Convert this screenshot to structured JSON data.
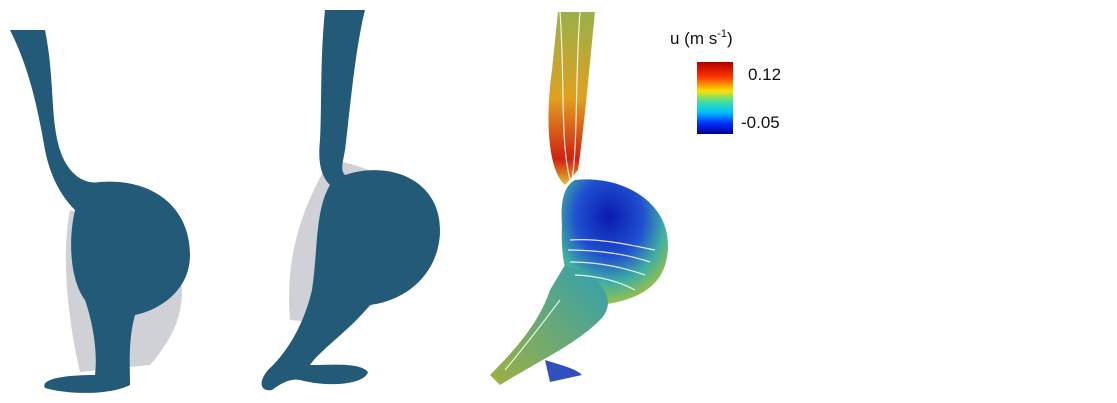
{
  "colorbar": {
    "title": "u (m s",
    "title_superscript": "-1",
    "title_suffix": ")",
    "max_label": "0.12",
    "min_label": "-0.05"
  }
}
